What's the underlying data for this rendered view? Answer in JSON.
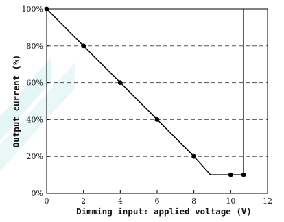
{
  "chart_data": {
    "type": "line",
    "title": "",
    "xlabel": "Dimming input: applied voltage (V)",
    "ylabel": "Output current (%)",
    "xlim": [
      0,
      12
    ],
    "ylim": [
      0,
      100
    ],
    "x_ticks": [
      0,
      2,
      4,
      6,
      8,
      10,
      12
    ],
    "y_ticks": [
      0,
      20,
      40,
      60,
      80,
      100
    ],
    "x_tick_labels": [
      "0",
      "2",
      "4",
      "6",
      "8",
      "10",
      "12"
    ],
    "y_tick_labels": [
      "0%",
      "20%",
      "40%",
      "60%",
      "80%",
      "100%"
    ],
    "grid": "horizontal dashed at 20%, 40%, 60%, 80%",
    "legend": "none",
    "series": [
      {
        "line": [
          {
            "x": 0,
            "y": 100
          },
          {
            "x": 8,
            "y": 20
          },
          {
            "x": 8.9,
            "y": 10
          },
          {
            "x": 10.7,
            "y": 10
          },
          {
            "x": 10.7,
            "y": 100
          }
        ],
        "markers": [
          {
            "x": 0,
            "y": 100
          },
          {
            "x": 2,
            "y": 80
          },
          {
            "x": 4,
            "y": 60
          },
          {
            "x": 6,
            "y": 40
          },
          {
            "x": 8,
            "y": 20
          },
          {
            "x": 10,
            "y": 10
          },
          {
            "x": 10.7,
            "y": 10
          }
        ]
      }
    ],
    "colors": {
      "line": "#000000",
      "grid": "#555555",
      "watermark": "#cfeeee"
    }
  }
}
